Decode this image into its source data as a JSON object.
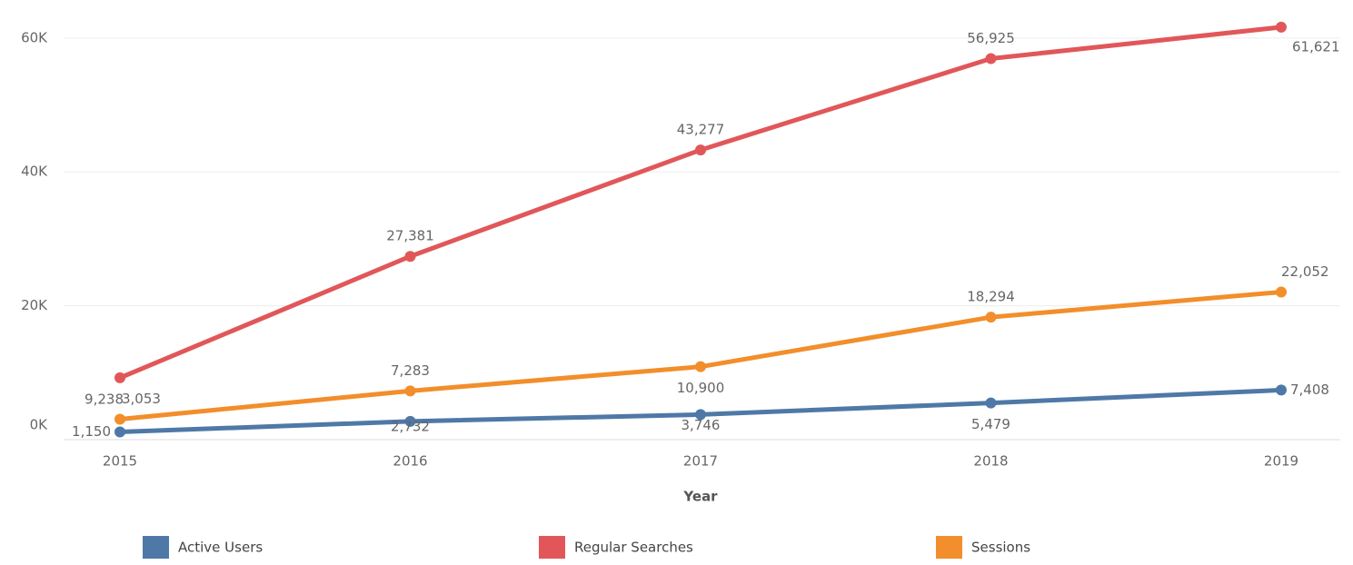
{
  "chart_data": {
    "type": "line",
    "x_label": "Year",
    "categories": [
      "2015",
      "2016",
      "2017",
      "2018",
      "2019"
    ],
    "series": [
      {
        "name": "Active Users",
        "color": "#4e79a7",
        "values": [
          1150,
          2732,
          3746,
          5479,
          7408
        ],
        "value_labels": [
          "1,150",
          "2,732",
          "3,746",
          "5,479",
          "7,408"
        ]
      },
      {
        "name": "Regular Searches",
        "color": "#e15759",
        "values": [
          9238,
          27381,
          43277,
          56925,
          61621
        ],
        "value_labels": [
          "9,238",
          "27,381",
          "43,277",
          "56,925",
          "61,621"
        ]
      },
      {
        "name": "Sessions",
        "color": "#f28e2b",
        "values": [
          3053,
          7283,
          10900,
          18294,
          22052
        ],
        "value_labels": [
          "3,053",
          "7,283",
          "10,900",
          "18,294",
          "22,052"
        ]
      }
    ],
    "ylim": [
      0,
      65000
    ],
    "yticks": [
      {
        "value": 0,
        "label": "0K"
      },
      {
        "value": 20000,
        "label": "20K"
      },
      {
        "value": 40000,
        "label": "40K"
      },
      {
        "value": 60000,
        "label": "60K"
      }
    ],
    "grid": true
  }
}
